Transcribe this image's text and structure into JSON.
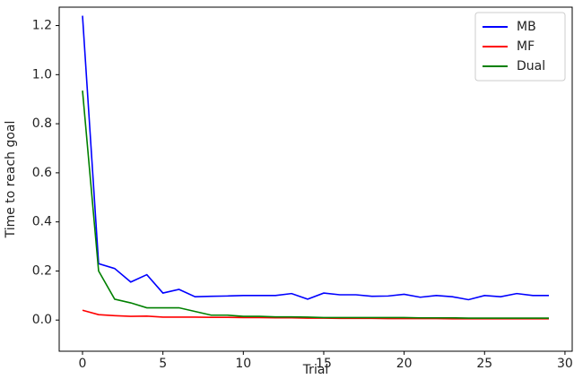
{
  "chart_data": {
    "type": "line",
    "xlabel": "Trial",
    "ylabel": "Time to reach goal",
    "x": [
      0,
      1,
      2,
      3,
      4,
      5,
      6,
      7,
      8,
      9,
      10,
      11,
      12,
      13,
      14,
      15,
      16,
      17,
      18,
      19,
      20,
      21,
      22,
      23,
      24,
      25,
      26,
      27,
      28,
      29
    ],
    "series": [
      {
        "name": "MB",
        "color": "#0000ff",
        "values": [
          1.24,
          0.23,
          0.21,
          0.155,
          0.185,
          0.11,
          0.125,
          0.095,
          0.097,
          0.098,
          0.1,
          0.1,
          0.1,
          0.108,
          0.085,
          0.11,
          0.103,
          0.103,
          0.097,
          0.098,
          0.105,
          0.093,
          0.1,
          0.095,
          0.083,
          0.1,
          0.095,
          0.108,
          0.1,
          0.1
        ]
      },
      {
        "name": "MF",
        "color": "#ff0000",
        "values": [
          0.04,
          0.022,
          0.018,
          0.015,
          0.016,
          0.012,
          0.012,
          0.012,
          0.011,
          0.011,
          0.01,
          0.01,
          0.009,
          0.009,
          0.008,
          0.008,
          0.007,
          0.007,
          0.007,
          0.006,
          0.006,
          0.006,
          0.006,
          0.005,
          0.005,
          0.005,
          0.005,
          0.005,
          0.005,
          0.005
        ]
      },
      {
        "name": "Dual",
        "color": "#008000",
        "values": [
          0.935,
          0.2,
          0.085,
          0.07,
          0.05,
          0.05,
          0.05,
          0.035,
          0.02,
          0.02,
          0.015,
          0.015,
          0.013,
          0.013,
          0.012,
          0.01,
          0.01,
          0.01,
          0.01,
          0.01,
          0.01,
          0.009,
          0.009,
          0.009,
          0.008,
          0.008,
          0.008,
          0.008,
          0.008,
          0.008
        ]
      }
    ],
    "xlim": [
      -1.45,
      30.45
    ],
    "xticks": [
      0,
      5,
      10,
      15,
      20,
      25,
      30
    ],
    "ylim": [
      -0.127,
      1.275
    ],
    "yticks": [
      {
        "value": 0,
        "label": "0.0"
      },
      {
        "value": 0.2,
        "label": "0.2"
      },
      {
        "value": 0.4,
        "label": "0.4"
      },
      {
        "value": 0.6,
        "label": "0.6"
      },
      {
        "value": 0.8,
        "label": "0.8"
      },
      {
        "value": 1.0,
        "label": "1.0"
      },
      {
        "value": 1.2,
        "label": "1.2"
      }
    ],
    "legend": "upper right"
  }
}
